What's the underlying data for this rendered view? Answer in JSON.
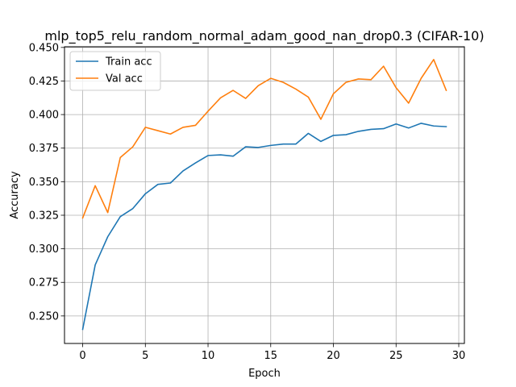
{
  "chart_data": {
    "type": "line",
    "title": "mlp_top5_relu_random_normal_adam_good_nan_drop0.3 (CIFAR-10)",
    "xlabel": "Epoch",
    "ylabel": "Accuracy",
    "xlim": [
      -1.45,
      30.45
    ],
    "ylim": [
      0.2295,
      0.4505
    ],
    "xticks": [
      0,
      5,
      10,
      15,
      20,
      25,
      30
    ],
    "xtick_labels": [
      "0",
      "5",
      "10",
      "15",
      "20",
      "25",
      "30"
    ],
    "yticks": [
      0.25,
      0.275,
      0.3,
      0.325,
      0.35,
      0.375,
      0.4,
      0.425,
      0.45
    ],
    "ytick_labels": [
      "0.250",
      "0.275",
      "0.300",
      "0.325",
      "0.350",
      "0.375",
      "0.400",
      "0.425",
      "0.450"
    ],
    "grid": true,
    "legend_position": "top-left",
    "x": [
      0,
      1,
      2,
      3,
      4,
      5,
      6,
      7,
      8,
      9,
      10,
      11,
      12,
      13,
      14,
      15,
      16,
      17,
      18,
      19,
      20,
      21,
      22,
      23,
      24,
      25,
      26,
      27,
      28,
      29
    ],
    "series": [
      {
        "name": "Train acc",
        "color": "#1f77b4",
        "values": [
          0.24,
          0.288,
          0.309,
          0.324,
          0.33,
          0.341,
          0.348,
          0.349,
          0.358,
          0.364,
          0.3695,
          0.37,
          0.369,
          0.376,
          0.3755,
          0.377,
          0.378,
          0.378,
          0.386,
          0.38,
          0.3845,
          0.385,
          0.3875,
          0.389,
          0.3895,
          0.393,
          0.39,
          0.3935,
          0.3915,
          0.391
        ]
      },
      {
        "name": "Val acc",
        "color": "#ff7f0e",
        "values": [
          0.323,
          0.347,
          0.327,
          0.368,
          0.376,
          0.3905,
          0.388,
          0.3855,
          0.3905,
          0.392,
          0.4025,
          0.4125,
          0.418,
          0.412,
          0.4215,
          0.427,
          0.424,
          0.419,
          0.413,
          0.3965,
          0.4155,
          0.424,
          0.4265,
          0.426,
          0.436,
          0.42,
          0.4085,
          0.427,
          0.441,
          0.418
        ]
      }
    ]
  }
}
